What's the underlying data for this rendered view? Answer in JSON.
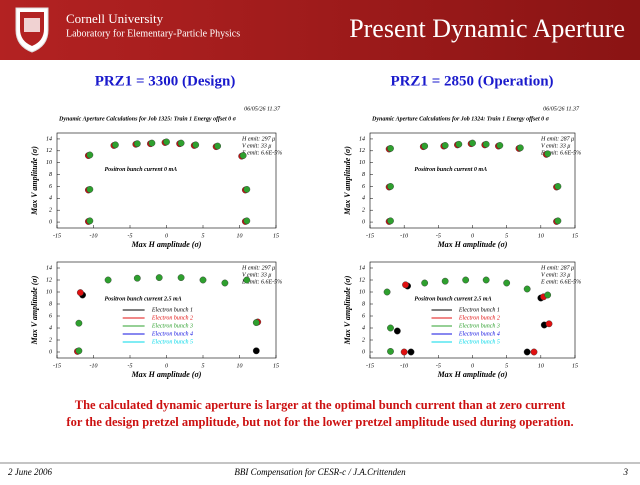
{
  "header": {
    "institution": "Cornell University",
    "lab": "Laboratory for Elementary-Particle Physics",
    "title": "Present Dynamic Aperture"
  },
  "columns": [
    {
      "heading": "PRZ1  = 3300 (Design)",
      "plots": [
        {
          "date": "06/05/26  11.37",
          "title": "Dynamic Aperture Calculations for Job 1325:  Train 1   Energy offset  0 σ",
          "info": [
            "H emit: 297 μ",
            "V emit: 33 μ",
            "E emit: 6.6E-5%"
          ],
          "annotation": "Positron bunch current  0 mA",
          "xlabel": "Max H amplitude (σ)",
          "ylabel": "Max V amplitude (σ)",
          "xlim": [
            -15,
            15
          ],
          "ylim": [
            -1,
            15
          ],
          "xticks": [
            -15,
            -10,
            -5,
            0,
            5,
            10,
            15
          ],
          "yticks": [
            0,
            2,
            4,
            6,
            8,
            10,
            12,
            14
          ],
          "series": [
            {
              "color": "#d01010",
              "x": [
                -10.7,
                -10.7,
                -10.7,
                -7.2,
                -4.2,
                -2.2,
                -0.2,
                1.8,
                3.8,
                6.8,
                10.3,
                10.8,
                10.8
              ],
              "y": [
                0.1,
                5.4,
                11.2,
                12.9,
                13.1,
                13.2,
                13.4,
                13.2,
                12.9,
                12.7,
                11.1,
                5.4,
                0.1
              ]
            },
            {
              "color": "#2ea02e",
              "x": [
                -10.5,
                -10.5,
                -10.5,
                -7,
                -4,
                -2,
                0,
                2,
                4,
                7,
                10.5,
                11,
                11
              ],
              "y": [
                0.2,
                5.5,
                11.3,
                13,
                13.2,
                13.3,
                13.5,
                13.3,
                13,
                12.8,
                11.2,
                5.5,
                0.2
              ]
            }
          ]
        },
        {
          "info": [
            "H emit: 297 μ",
            "V emit: 33 μ",
            "E emit: 6.6E-5%"
          ],
          "annotation": "Positron bunch current  2.5 mA",
          "xlabel": "Max H amplitude (σ)",
          "ylabel": "Max V amplitude (σ)",
          "xlim": [
            -15,
            15
          ],
          "ylim": [
            -1,
            15
          ],
          "xticks": [
            -15,
            -10,
            -5,
            0,
            5,
            10,
            15
          ],
          "yticks": [
            0,
            2,
            4,
            6,
            8,
            10,
            12,
            14
          ],
          "series": [
            {
              "name": "Electron bunch 1",
              "color": "#000000",
              "x": [
                -11.5,
                12.3
              ],
              "y": [
                9.5,
                0.2
              ]
            },
            {
              "name": "Electron bunch 2",
              "color": "#e01010",
              "x": [
                -11.8,
                -12.2,
                12.5
              ],
              "y": [
                9.9,
                0.1,
                5
              ]
            },
            {
              "name": "Electron bunch 3",
              "color": "#2ea02e",
              "x": [
                -12,
                -12,
                -8,
                -4,
                -1,
                2,
                5,
                8,
                11,
                12.3
              ],
              "y": [
                4.8,
                0.2,
                12,
                12.3,
                12.4,
                12.4,
                12,
                11.5,
                12,
                4.9
              ]
            },
            {
              "name": "Electron bunch 4",
              "color": "#1010e0",
              "x": [],
              "y": []
            },
            {
              "name": "Electron bunch 5",
              "color": "#00d8e8",
              "x": [],
              "y": []
            }
          ]
        }
      ]
    },
    {
      "heading": "PRZ1  = 2850  (Operation)",
      "plots": [
        {
          "date": "06/05/26  11.37",
          "title": "Dynamic Aperture Calculations for Job 1324:  Train 1   Energy offset  0 σ",
          "info": [
            "H emit: 287 μ",
            "V emit: 33 μ",
            "E emit: 6.6E-5%"
          ],
          "annotation": "Positron bunch current  0 mA",
          "xlabel": "Max H amplitude (σ)",
          "ylabel": "Max V amplitude (σ)",
          "xlim": [
            -15,
            15
          ],
          "ylim": [
            -1,
            15
          ],
          "xticks": [
            -15,
            -10,
            -5,
            0,
            5,
            10,
            15
          ],
          "yticks": [
            0,
            2,
            4,
            6,
            8,
            10,
            12,
            14
          ],
          "series": [
            {
              "color": "#d01010",
              "x": [
                -12.2,
                -12.2,
                -12.2,
                -7.2,
                -4.2,
                -2.2,
                -0.2,
                1.8,
                3.8,
                6.8,
                10.8,
                12.3,
                12.3
              ],
              "y": [
                0.1,
                5.9,
                12.3,
                12.7,
                12.8,
                13,
                13.2,
                13,
                12.8,
                12.4,
                11.4,
                5.9,
                0.1
              ]
            },
            {
              "color": "#2ea02e",
              "x": [
                -12,
                -12,
                -12,
                -7,
                -4,
                -2,
                0,
                2,
                4,
                7,
                11,
                12.5,
                12.5
              ],
              "y": [
                0.2,
                6,
                12.4,
                12.8,
                12.9,
                13.1,
                13.3,
                13.1,
                12.9,
                12.5,
                11.5,
                6,
                0.2
              ]
            }
          ]
        },
        {
          "info": [
            "H emit: 287 μ",
            "V emit: 33 μ",
            "E emit: 6.6E-5%"
          ],
          "annotation": "Positron bunch current  2.5 mA",
          "xlabel": "Max H amplitude (σ)",
          "ylabel": "Max V amplitude (σ)",
          "xlim": [
            -15,
            15
          ],
          "ylim": [
            -1,
            15
          ],
          "xticks": [
            -15,
            -10,
            -5,
            0,
            5,
            10,
            15
          ],
          "yticks": [
            0,
            2,
            4,
            6,
            8,
            10,
            12,
            14
          ],
          "series": [
            {
              "name": "Electron bunch 1",
              "color": "#000000",
              "x": [
                -9.5,
                -11,
                10,
                10.5,
                -9,
                8
              ],
              "y": [
                11,
                3.5,
                9,
                4.5,
                0,
                0
              ]
            },
            {
              "name": "Electron bunch 2",
              "color": "#e01010",
              "x": [
                -9.8,
                -10,
                10.4,
                11.2,
                9
              ],
              "y": [
                11.2,
                0,
                9.2,
                4.7,
                0
              ]
            },
            {
              "name": "Electron bunch 3",
              "color": "#2ea02e",
              "x": [
                -12.5,
                -7,
                -4,
                -1,
                2,
                5,
                8,
                11,
                -12,
                -12
              ],
              "y": [
                10,
                11.5,
                11.8,
                12,
                12,
                11.5,
                10.5,
                9.5,
                4,
                0.1
              ]
            },
            {
              "name": "Electron bunch 4",
              "color": "#1010e0",
              "x": [],
              "y": []
            },
            {
              "name": "Electron bunch 5",
              "color": "#00d8e8",
              "x": [],
              "y": []
            }
          ]
        }
      ]
    }
  ],
  "conclusion": [
    "The calculated dynamic aperture is larger at the optimal bunch current than at zero current",
    "for  the design pretzel amplitude, but not for the lower pretzel amplitude used during operation."
  ],
  "footer": {
    "date": "2 June 2006",
    "talk": "BBI Compensation for CESR-c / J.A.Crittenden",
    "page": "3"
  }
}
